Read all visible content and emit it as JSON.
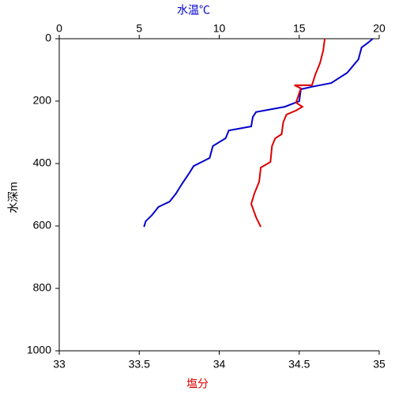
{
  "chart_data": {
    "type": "profile",
    "x2label": "水温℃",
    "xlabel": "塩分",
    "ylabel": "水深m",
    "x2lim": [
      0,
      20
    ],
    "x2ticks": [
      0,
      5,
      10,
      15,
      20
    ],
    "x2color": "#0000cc",
    "xlim": [
      33,
      35
    ],
    "xticks": [
      33,
      33.5,
      34,
      34.5,
      35
    ],
    "xcolor": "#dd0000",
    "ylim": [
      0,
      1000
    ],
    "yticks": [
      0,
      200,
      400,
      600,
      800,
      1000
    ],
    "yinverted": true,
    "series": [
      {
        "axis": "x2",
        "color": "#0000cc",
        "x": [
          19.6,
          19.3,
          18.9,
          18.7,
          18.0,
          17.0,
          15.8,
          15.1,
          15.0,
          14.1,
          12.3,
          12.1,
          12.0,
          10.6,
          10.4,
          9.6,
          9.4,
          8.4,
          8.1,
          7.7,
          7.3,
          6.9,
          6.2,
          5.8,
          5.4,
          5.3
        ],
        "values": [
          0,
          13,
          28,
          66,
          109,
          142,
          154,
          162,
          200,
          218,
          235,
          251,
          281,
          294,
          319,
          344,
          382,
          408,
          433,
          463,
          496,
          522,
          539,
          565,
          585,
          603
        ]
      },
      {
        "axis": "x",
        "color": "#dd0000",
        "x": [
          34.66,
          34.65,
          34.63,
          34.6,
          34.58,
          34.47,
          34.51,
          34.48,
          34.52,
          34.48,
          34.42,
          34.4,
          34.39,
          34.35,
          34.33,
          34.32,
          34.26,
          34.25,
          34.22,
          34.2,
          34.23,
          34.26
        ],
        "values": [
          0,
          38,
          78,
          116,
          149,
          149,
          159,
          205,
          218,
          230,
          243,
          268,
          306,
          319,
          344,
          395,
          413,
          458,
          496,
          529,
          572,
          603
        ]
      }
    ]
  }
}
